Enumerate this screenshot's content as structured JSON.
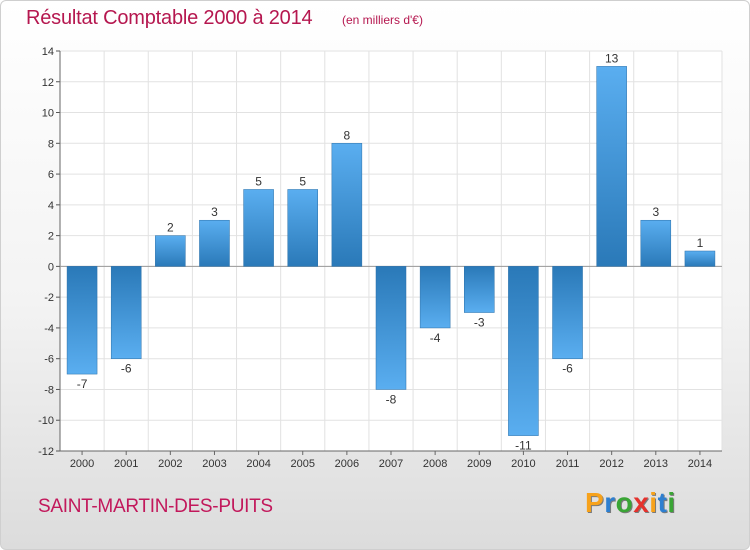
{
  "header": {
    "title": "Résultat Comptable 2000 à 2014",
    "subtitle": "(en milliers d'€)"
  },
  "footer": {
    "commune": "SAINT-MARTIN-DES-PUITS",
    "logo_text": "Proxiti",
    "logo_colors": [
      "#f7a21b",
      "#2e7fd0",
      "#3aa535",
      "#e5322d",
      "#f7a21b",
      "#2e7fd0",
      "#3aa535"
    ]
  },
  "colors": {
    "title": "#b5174f",
    "bar_light": "#5aaef0",
    "bar_dark": "#2a79b8"
  },
  "chart_data": {
    "type": "bar",
    "categories": [
      "2000",
      "2001",
      "2002",
      "2003",
      "2004",
      "2005",
      "2006",
      "2007",
      "2008",
      "2009",
      "2010",
      "2011",
      "2012",
      "2013",
      "2014"
    ],
    "values": [
      -7,
      -6,
      2,
      3,
      5,
      5,
      8,
      -8,
      -4,
      -3,
      -11,
      -6,
      13,
      3,
      1
    ],
    "data_labels": [
      "-7",
      "-6",
      "2",
      "3",
      "5",
      "5",
      "8",
      "-8",
      "-4",
      "-3",
      "-11",
      "-6",
      "13",
      "3",
      "1"
    ],
    "yticks": [
      14,
      12,
      10,
      8,
      6,
      4,
      2,
      0,
      -2,
      -4,
      -6,
      -8,
      -10,
      -12
    ],
    "ylim": [
      -12,
      14
    ],
    "grid": true,
    "legend": "none"
  }
}
